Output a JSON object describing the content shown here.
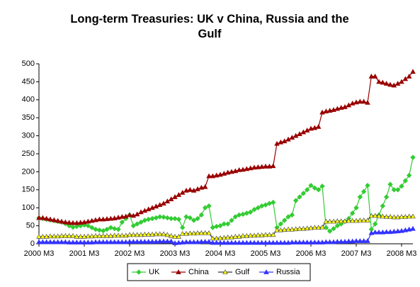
{
  "chart_data": {
    "type": "line",
    "title": "Long-term Treasuries: UK v China, Russia and the Gulf",
    "categories": [
      "2000 M3",
      null,
      null,
      null,
      null,
      null,
      null,
      null,
      null,
      null,
      null,
      null,
      "2001 M3",
      null,
      null,
      null,
      null,
      null,
      null,
      null,
      null,
      null,
      null,
      null,
      "2002 M3",
      null,
      null,
      null,
      null,
      null,
      null,
      null,
      null,
      null,
      null,
      null,
      "2003 M3",
      null,
      null,
      null,
      null,
      null,
      null,
      null,
      null,
      null,
      null,
      null,
      "2004 M3",
      null,
      null,
      null,
      null,
      null,
      null,
      null,
      null,
      null,
      null,
      null,
      "2005 M3",
      null,
      null,
      null,
      null,
      null,
      null,
      null,
      null,
      null,
      null,
      null,
      "2006 M3",
      null,
      null,
      null,
      null,
      null,
      null,
      null,
      null,
      null,
      null,
      null,
      "2007 M3",
      null,
      null,
      null,
      null,
      null,
      null,
      null,
      null,
      null,
      null,
      null,
      "2008 M3",
      null,
      null,
      null
    ],
    "series": [
      {
        "name": "UK",
        "color": "#33cc33",
        "marker": "diamond",
        "values": [
          72,
          70,
          68,
          66,
          64,
          62,
          60,
          56,
          50,
          46,
          48,
          50,
          52,
          50,
          45,
          40,
          38,
          36,
          40,
          45,
          42,
          40,
          60,
          70,
          80,
          50,
          55,
          60,
          65,
          68,
          70,
          72,
          75,
          74,
          72,
          70,
          70,
          68,
          45,
          75,
          72,
          65,
          70,
          80,
          100,
          105,
          45,
          48,
          50,
          55,
          55,
          65,
          75,
          80,
          82,
          85,
          88,
          95,
          100,
          105,
          108,
          112,
          115,
          45,
          55,
          65,
          75,
          80,
          120,
          130,
          140,
          150,
          162,
          155,
          150,
          160,
          45,
          35,
          42,
          50,
          55,
          62,
          70,
          85,
          100,
          130,
          145,
          162,
          40,
          55,
          80,
          105,
          130,
          165,
          150,
          150,
          160,
          175,
          190,
          240
        ]
      },
      {
        "name": "China",
        "color": "#990000",
        "marker": "triangle",
        "values": [
          72,
          72,
          70,
          68,
          66,
          64,
          62,
          60,
          59,
          58,
          58,
          59,
          60,
          62,
          64,
          66,
          68,
          68,
          69,
          70,
          71,
          73,
          75,
          76,
          80,
          78,
          82,
          88,
          92,
          96,
          100,
          104,
          108,
          112,
          118,
          124,
          130,
          136,
          142,
          148,
          150,
          148,
          152,
          156,
          158,
          188,
          188,
          190,
          192,
          195,
          198,
          200,
          202,
          205,
          206,
          208,
          210,
          212,
          213,
          214,
          215,
          215,
          216,
          278,
          282,
          285,
          290,
          295,
          300,
          305,
          310,
          315,
          320,
          322,
          325,
          365,
          368,
          370,
          372,
          375,
          378,
          380,
          385,
          390,
          393,
          395,
          395,
          392,
          465,
          465,
          450,
          448,
          445,
          442,
          440,
          445,
          450,
          458,
          465,
          478
        ]
      },
      {
        "name": "Gulf",
        "color": "#ffff00",
        "marker": "triangle",
        "values": [
          20,
          20,
          20,
          21,
          21,
          21,
          22,
          22,
          22,
          22,
          20,
          20,
          20,
          21,
          21,
          22,
          22,
          22,
          22,
          22,
          23,
          23,
          23,
          23,
          25,
          25,
          25,
          25,
          26,
          26,
          26,
          27,
          27,
          27,
          25,
          22,
          20,
          20,
          28,
          28,
          29,
          29,
          30,
          30,
          30,
          30,
          15,
          15,
          16,
          17,
          18,
          18,
          20,
          20,
          22,
          22,
          23,
          23,
          24,
          24,
          25,
          25,
          25,
          38,
          38,
          39,
          40,
          40,
          41,
          42,
          42,
          43,
          44,
          45,
          45,
          46,
          62,
          62,
          62,
          63,
          63,
          63,
          64,
          64,
          64,
          65,
          65,
          65,
          78,
          78,
          77,
          76,
          75,
          75,
          74,
          74,
          75,
          75,
          76,
          76
        ]
      },
      {
        "name": "Russia",
        "color": "#3333ff",
        "marker": "triangle",
        "values": [
          5,
          5,
          5,
          5,
          5,
          5,
          5,
          5,
          4,
          4,
          4,
          4,
          4,
          4,
          4,
          5,
          5,
          5,
          5,
          5,
          5,
          5,
          5,
          5,
          6,
          6,
          6,
          6,
          6,
          6,
          6,
          6,
          7,
          7,
          7,
          7,
          2,
          3,
          4,
          5,
          5,
          5,
          5,
          6,
          6,
          6,
          3,
          3,
          3,
          3,
          3,
          3,
          3,
          3,
          3,
          3,
          3,
          3,
          3,
          3,
          3,
          3,
          3,
          3,
          3,
          3,
          3,
          4,
          4,
          4,
          4,
          4,
          4,
          4,
          4,
          4,
          5,
          5,
          5,
          6,
          6,
          6,
          7,
          7,
          8,
          8,
          8,
          8,
          30,
          32,
          32,
          32,
          33,
          33,
          34,
          35,
          36,
          38,
          40,
          42
        ]
      }
    ],
    "ylim": [
      0,
      500
    ],
    "yticks": [
      0,
      50,
      100,
      150,
      200,
      250,
      300,
      350,
      400,
      450,
      500
    ],
    "grid": false,
    "legend": "bottom"
  }
}
